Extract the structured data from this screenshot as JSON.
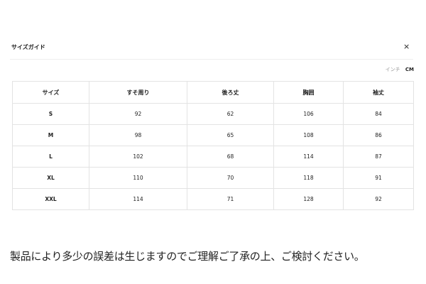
{
  "header": {
    "title": "サイズガイド",
    "close_label": "×"
  },
  "units": {
    "inch": "インチ",
    "cm": "CM",
    "selected": "CM"
  },
  "table": {
    "columns": [
      "サイズ",
      "すそ周り",
      "後ろ丈",
      "胸囲",
      "袖丈"
    ],
    "rows": [
      [
        "S",
        "92",
        "62",
        "106",
        "84"
      ],
      [
        "M",
        "98",
        "65",
        "108",
        "86"
      ],
      [
        "L",
        "102",
        "68",
        "114",
        "87"
      ],
      [
        "XL",
        "110",
        "70",
        "118",
        "91"
      ],
      [
        "XXL",
        "114",
        "71",
        "128",
        "92"
      ]
    ]
  },
  "note": "製品により多少の誤差は生じますのでご理解ご了承の上、ご検討ください。"
}
